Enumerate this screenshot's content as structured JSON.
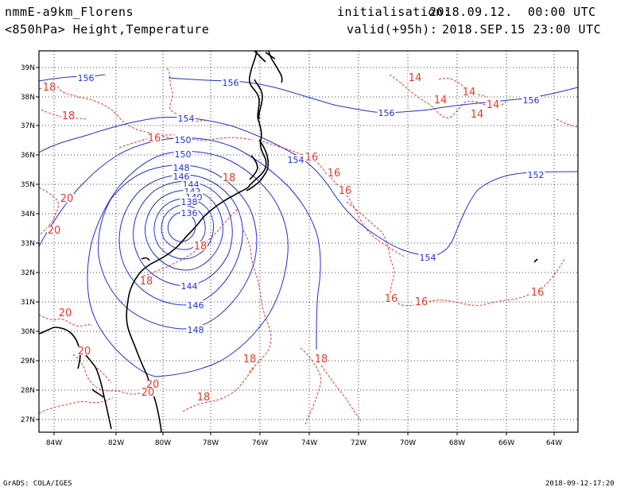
{
  "header": {
    "model": "nmmE-a9km_Florens",
    "fields": "<850hPa> Height,Temperature",
    "init_label": "initialisation:",
    "init_value": "2018.09.12.  00:00 UTC",
    "valid_label": "valid(+95h):",
    "valid_value": "2018.SEP.15 23:00 UTC"
  },
  "footer": {
    "credit": "GrADS: COLA/IGES",
    "timestamp": "2018-09-12-17:20"
  },
  "map": {
    "lat_labels": [
      "39N",
      "38N",
      "37N",
      "36N",
      "35N",
      "34N",
      "33N",
      "32N",
      "31N",
      "30N",
      "29N",
      "28N",
      "27N"
    ],
    "lon_labels": [
      "84W",
      "82W",
      "80W",
      "78W",
      "76W",
      "74W",
      "72W",
      "70W",
      "68W",
      "66W",
      "64W"
    ],
    "height_contour_labels": [
      "156",
      "156",
      "156",
      "156",
      "154",
      "154",
      "154",
      "152",
      "150",
      "150",
      "148",
      "148",
      "146",
      "146",
      "144",
      "144",
      "142",
      "140",
      "138",
      "136"
    ],
    "temperature_contour_labels": [
      "18",
      "18",
      "16",
      "14",
      "14",
      "14",
      "14",
      "14",
      "16",
      "16",
      "16",
      "20",
      "20",
      "18",
      "18",
      "18",
      "16",
      "16",
      "16",
      "20",
      "20",
      "20",
      "20",
      "18",
      "18",
      "18"
    ],
    "colors": {
      "height": "#1f2fd6",
      "temperature": "#e8362a",
      "coast": "#000000",
      "grid": "#000000"
    }
  }
}
